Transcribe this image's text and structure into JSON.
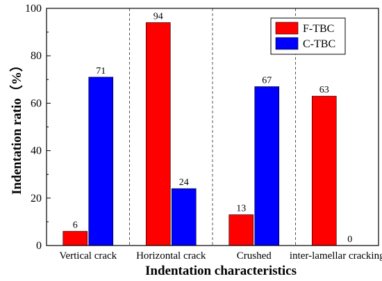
{
  "chart_data": {
    "type": "bar",
    "categories": [
      "Vertical crack",
      "Horizontal crack",
      "Crushed",
      "inter-lamellar cracking"
    ],
    "series": [
      {
        "name": "F-TBC",
        "color": "#ff0000",
        "values": [
          6,
          94,
          13,
          63
        ]
      },
      {
        "name": "C-TBC",
        "color": "#0000ff",
        "values": [
          71,
          24,
          67,
          0
        ]
      }
    ],
    "xlabel": "Indentation characteristics",
    "ylabel": "Indentation ratio（%）",
    "ylim": [
      0,
      100
    ],
    "yticks": [
      0,
      20,
      40,
      60,
      80,
      100
    ],
    "legend_position": "top-right",
    "category_separators": "dashed",
    "grid": false
  }
}
